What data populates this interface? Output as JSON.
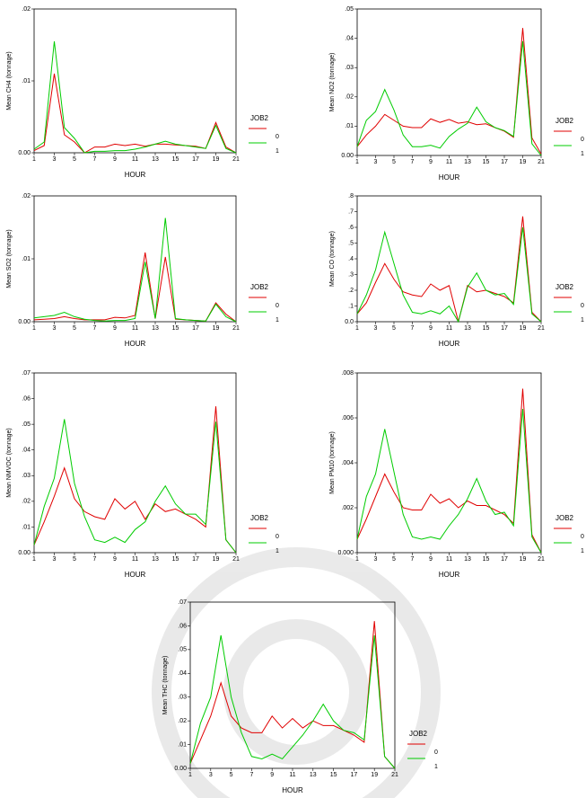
{
  "chart_data": [
    {
      "type": "line",
      "y_label": "Mean CH4 (tonnage)",
      "x_label": "HOUR",
      "legend_title": "JOB2",
      "x": [
        1,
        2,
        3,
        4,
        5,
        6,
        7,
        8,
        9,
        10,
        11,
        12,
        13,
        14,
        15,
        16,
        17,
        18,
        19,
        20,
        21
      ],
      "xlim": [
        1,
        21
      ],
      "xticks": [
        1,
        3,
        5,
        7,
        9,
        11,
        13,
        15,
        17,
        19,
        21
      ],
      "ylim": [
        0,
        0.02
      ],
      "yticks": [
        {
          "value": 0,
          "label": "0.00"
        },
        {
          "value": 0.01,
          "label": ".01"
        },
        {
          "value": 0.02,
          "label": ".02"
        }
      ],
      "series": [
        {
          "name": "0",
          "color": "#e00000",
          "values": [
            0.0003,
            0.001,
            0.011,
            0.0025,
            0.0015,
            0,
            0.0008,
            0.0008,
            0.0012,
            0.001,
            0.0012,
            0.0009,
            0.0012,
            0.0012,
            0.0011,
            0.001,
            0.0009,
            0.0006,
            0.0042,
            0.0008,
            0
          ]
        },
        {
          "name": "1",
          "color": "#00cc00",
          "values": [
            0.0005,
            0.0015,
            0.0155,
            0.0035,
            0.002,
            0,
            0.0002,
            0.0002,
            0.0003,
            0.0003,
            0.0005,
            0.0008,
            0.0012,
            0.0016,
            0.0012,
            0.001,
            0.0008,
            0.0006,
            0.0038,
            0.0006,
            0
          ]
        }
      ]
    },
    {
      "type": "line",
      "y_label": "Mean NO2 (tonnage)",
      "x_label": "HOUR",
      "legend_title": "JOB2",
      "x": [
        1,
        2,
        3,
        4,
        5,
        6,
        7,
        8,
        9,
        10,
        11,
        12,
        13,
        14,
        15,
        16,
        17,
        18,
        19,
        20,
        21
      ],
      "xlim": [
        1,
        21
      ],
      "xticks": [
        1,
        3,
        5,
        7,
        9,
        11,
        13,
        15,
        17,
        19,
        21
      ],
      "ylim": [
        0,
        0.05
      ],
      "yticks": [
        {
          "value": 0,
          "label": "0.00"
        },
        {
          "value": 0.01,
          "label": ".01"
        },
        {
          "value": 0.02,
          "label": ".02"
        },
        {
          "value": 0.03,
          "label": ".03"
        },
        {
          "value": 0.04,
          "label": ".04"
        },
        {
          "value": 0.05,
          "label": ".05"
        }
      ],
      "series": [
        {
          "name": "0",
          "color": "#e00000",
          "values": [
            0.003,
            0.007,
            0.01,
            0.014,
            0.012,
            0.01,
            0.0095,
            0.0095,
            0.0125,
            0.0113,
            0.0123,
            0.011,
            0.0115,
            0.0105,
            0.0108,
            0.0095,
            0.0083,
            0.0062,
            0.0435,
            0.006,
            0.0005
          ]
        },
        {
          "name": "1",
          "color": "#00cc00",
          "values": [
            0.003,
            0.012,
            0.015,
            0.0225,
            0.0155,
            0.007,
            0.003,
            0.003,
            0.0035,
            0.0025,
            0.0065,
            0.009,
            0.011,
            0.0165,
            0.0115,
            0.0095,
            0.0085,
            0.0065,
            0.039,
            0.004,
            0
          ]
        }
      ]
    },
    {
      "type": "line",
      "y_label": "Mean SO2  (tonnage)",
      "x_label": "HOUR",
      "legend_title": "JOB2",
      "x": [
        1,
        2,
        3,
        4,
        5,
        6,
        7,
        8,
        9,
        10,
        11,
        12,
        13,
        14,
        15,
        16,
        17,
        18,
        19,
        20,
        21
      ],
      "xlim": [
        1,
        21
      ],
      "xticks": [
        1,
        3,
        5,
        7,
        9,
        11,
        13,
        15,
        17,
        19,
        21
      ],
      "ylim": [
        0,
        0.02
      ],
      "yticks": [
        {
          "value": 0,
          "label": "0.00"
        },
        {
          "value": 0.01,
          "label": ".01"
        },
        {
          "value": 0.02,
          "label": ".02"
        }
      ],
      "series": [
        {
          "name": "0",
          "color": "#e00000",
          "values": [
            0.0003,
            0.0004,
            0.0005,
            0.0008,
            0.0005,
            0.0003,
            0.0003,
            0.0003,
            0.0007,
            0.0006,
            0.001,
            0.011,
            0.0005,
            0.0103,
            0.0004,
            0.0003,
            0.0002,
            0.0001,
            0.003,
            0.0012,
            0
          ]
        },
        {
          "name": "1",
          "color": "#00cc00",
          "values": [
            0.0006,
            0.0008,
            0.001,
            0.0015,
            0.0008,
            0.0004,
            0.0002,
            0.0001,
            0.0002,
            0.0002,
            0.0005,
            0.0095,
            0.0005,
            0.0165,
            0.0005,
            0.0003,
            0.0002,
            0.0001,
            0.0028,
            0.0008,
            0
          ]
        }
      ]
    },
    {
      "type": "line",
      "y_label": "Mean CO (tonnage)",
      "x_label": "HOUR",
      "legend_title": "JOB2",
      "x": [
        1,
        2,
        3,
        4,
        5,
        6,
        7,
        8,
        9,
        10,
        11,
        12,
        13,
        14,
        15,
        16,
        17,
        18,
        19,
        20,
        21
      ],
      "xlim": [
        1,
        21
      ],
      "xticks": [
        1,
        3,
        5,
        7,
        9,
        11,
        13,
        15,
        17,
        19,
        21
      ],
      "ylim": [
        0,
        0.8
      ],
      "yticks": [
        {
          "value": 0,
          "label": "0.0"
        },
        {
          "value": 0.1,
          "label": ".1"
        },
        {
          "value": 0.2,
          "label": ".2"
        },
        {
          "value": 0.3,
          "label": ".3"
        },
        {
          "value": 0.4,
          "label": ".4"
        },
        {
          "value": 0.5,
          "label": ".5"
        },
        {
          "value": 0.6,
          "label": ".6"
        },
        {
          "value": 0.7,
          "label": ".7"
        },
        {
          "value": 0.8,
          "label": ".8"
        }
      ],
      "series": [
        {
          "name": "0",
          "color": "#e00000",
          "values": [
            0.05,
            0.12,
            0.25,
            0.37,
            0.27,
            0.19,
            0.17,
            0.16,
            0.24,
            0.2,
            0.23,
            0,
            0.23,
            0.19,
            0.2,
            0.18,
            0.16,
            0.12,
            0.67,
            0.06,
            0
          ]
        },
        {
          "name": "1",
          "color": "#00cc00",
          "values": [
            0.05,
            0.17,
            0.33,
            0.57,
            0.37,
            0.17,
            0.06,
            0.05,
            0.07,
            0.05,
            0.1,
            0,
            0.22,
            0.31,
            0.2,
            0.17,
            0.18,
            0.11,
            0.6,
            0.05,
            0
          ]
        }
      ]
    },
    {
      "type": "line",
      "y_label": "Mean NMVOC (tonnage)",
      "x_label": "HOUR",
      "legend_title": "JOB2",
      "x": [
        1,
        2,
        3,
        4,
        5,
        6,
        7,
        8,
        9,
        10,
        11,
        12,
        13,
        14,
        15,
        16,
        17,
        18,
        19,
        20,
        21
      ],
      "xlim": [
        1,
        21
      ],
      "xticks": [
        1,
        3,
        5,
        7,
        9,
        11,
        13,
        15,
        17,
        19,
        21
      ],
      "ylim": [
        0,
        0.07
      ],
      "yticks": [
        {
          "value": 0,
          "label": "0.00"
        },
        {
          "value": 0.01,
          "label": ".01"
        },
        {
          "value": 0.02,
          "label": ".02"
        },
        {
          "value": 0.03,
          "label": ".03"
        },
        {
          "value": 0.04,
          "label": ".04"
        },
        {
          "value": 0.05,
          "label": ".05"
        },
        {
          "value": 0.06,
          "label": ".06"
        },
        {
          "value": 0.07,
          "label": ".07"
        }
      ],
      "series": [
        {
          "name": "0",
          "color": "#e00000",
          "values": [
            0.003,
            0.012,
            0.022,
            0.033,
            0.021,
            0.016,
            0.014,
            0.013,
            0.021,
            0.017,
            0.02,
            0.013,
            0.019,
            0.016,
            0.017,
            0.015,
            0.013,
            0.01,
            0.057,
            0.005,
            0
          ]
        },
        {
          "name": "1",
          "color": "#00cc00",
          "values": [
            0.003,
            0.018,
            0.029,
            0.052,
            0.027,
            0.014,
            0.005,
            0.004,
            0.006,
            0.004,
            0.009,
            0.012,
            0.02,
            0.026,
            0.019,
            0.015,
            0.015,
            0.011,
            0.051,
            0.005,
            0
          ]
        }
      ]
    },
    {
      "type": "line",
      "y_label": "Mean PM10 (tonnage)",
      "x_label": "HOUR",
      "legend_title": "JOB2",
      "x": [
        1,
        2,
        3,
        4,
        5,
        6,
        7,
        8,
        9,
        10,
        11,
        12,
        13,
        14,
        15,
        16,
        17,
        18,
        19,
        20,
        21
      ],
      "xlim": [
        1,
        21
      ],
      "xticks": [
        1,
        3,
        5,
        7,
        9,
        11,
        13,
        15,
        17,
        19,
        21
      ],
      "ylim": [
        0,
        0.008
      ],
      "yticks": [
        {
          "value": 0,
          "label": "0.000"
        },
        {
          "value": 0.002,
          "label": ".002"
        },
        {
          "value": 0.004,
          "label": ".004"
        },
        {
          "value": 0.006,
          "label": ".006"
        },
        {
          "value": 0.008,
          "label": ".008"
        }
      ],
      "series": [
        {
          "name": "0",
          "color": "#e00000",
          "values": [
            0.0006,
            0.0015,
            0.0025,
            0.0035,
            0.0027,
            0.002,
            0.0019,
            0.0019,
            0.0026,
            0.0022,
            0.0024,
            0.002,
            0.0023,
            0.0021,
            0.0021,
            0.0019,
            0.0017,
            0.0013,
            0.0073,
            0.0008,
            0
          ]
        },
        {
          "name": "1",
          "color": "#00cc00",
          "values": [
            0.0006,
            0.0025,
            0.0035,
            0.0055,
            0.0036,
            0.0017,
            0.0007,
            0.0006,
            0.0007,
            0.0006,
            0.0012,
            0.0017,
            0.0024,
            0.0033,
            0.0023,
            0.0017,
            0.0018,
            0.0012,
            0.0064,
            0.0007,
            0
          ]
        }
      ]
    },
    {
      "type": "line",
      "y_label": "Mean THC (tonnage)",
      "x_label": "HOUR",
      "legend_title": "JOB2",
      "x": [
        1,
        2,
        3,
        4,
        5,
        6,
        7,
        8,
        9,
        10,
        11,
        12,
        13,
        14,
        15,
        16,
        17,
        18,
        19,
        20,
        21
      ],
      "xlim": [
        1,
        21
      ],
      "xticks": [
        1,
        3,
        5,
        7,
        9,
        11,
        13,
        15,
        17,
        19,
        21
      ],
      "ylim": [
        0,
        0.07
      ],
      "yticks": [
        {
          "value": 0,
          "label": "0.00"
        },
        {
          "value": 0.01,
          "label": ".01"
        },
        {
          "value": 0.02,
          "label": ".02"
        },
        {
          "value": 0.03,
          "label": ".03"
        },
        {
          "value": 0.04,
          "label": ".04"
        },
        {
          "value": 0.05,
          "label": ".05"
        },
        {
          "value": 0.06,
          "label": ".06"
        },
        {
          "value": 0.07,
          "label": ".07"
        }
      ],
      "series": [
        {
          "name": "0",
          "color": "#e00000",
          "values": [
            0.002,
            0.012,
            0.022,
            0.036,
            0.022,
            0.017,
            0.015,
            0.015,
            0.022,
            0.017,
            0.021,
            0.017,
            0.02,
            0.018,
            0.018,
            0.016,
            0.014,
            0.011,
            0.062,
            0.005,
            0
          ]
        },
        {
          "name": "1",
          "color": "#00cc00",
          "values": [
            0.002,
            0.019,
            0.03,
            0.056,
            0.03,
            0.015,
            0.005,
            0.004,
            0.006,
            0.004,
            0.009,
            0.014,
            0.02,
            0.027,
            0.02,
            0.016,
            0.015,
            0.012,
            0.056,
            0.005,
            0
          ]
        }
      ]
    }
  ]
}
